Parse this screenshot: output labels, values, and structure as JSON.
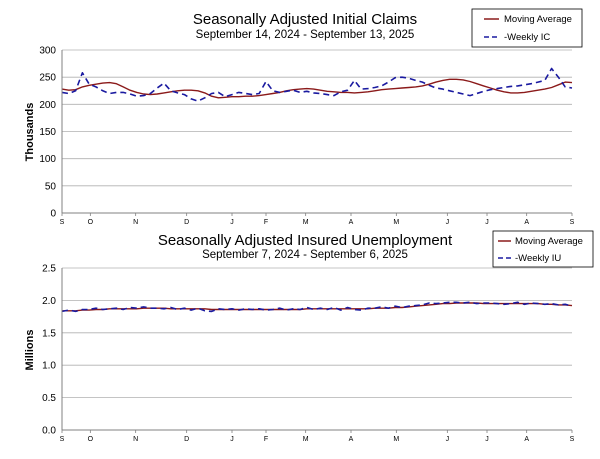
{
  "colors": {
    "moving_average": "#8b1a1a",
    "weekly": "#1a1aa0",
    "grid": "#b0b0b0",
    "axis": "#808080"
  },
  "chart_data": [
    {
      "type": "line",
      "title": "Seasonally Adjusted Initial Claims",
      "subtitle": "September 14, 2024 - September 13, 2025",
      "xlabel": "",
      "ylabel": "Thousands",
      "ylim": [
        0,
        300
      ],
      "yticks": [
        "0",
        "50",
        "100",
        "150",
        "200",
        "250",
        "300"
      ],
      "ytick_values": [
        0,
        50,
        100,
        150,
        200,
        250,
        300
      ],
      "xtick_labels": [
        "S",
        "O",
        "N",
        "D",
        "J",
        "F",
        "M",
        "A",
        "M",
        "J",
        "J",
        "A",
        "S"
      ],
      "xtick_weeks": [
        0,
        5,
        13,
        22,
        30,
        36,
        43,
        51,
        59,
        68,
        75,
        82,
        90
      ],
      "grid": true,
      "legend_position": "top-right",
      "series": [
        {
          "name": "Moving Average",
          "style": "solid",
          "values": [
            228,
            226,
            227,
            232,
            235,
            237,
            239,
            240,
            238,
            232,
            226,
            222,
            219,
            218,
            219,
            221,
            223,
            225,
            226,
            226,
            225,
            221,
            215,
            212,
            213,
            214,
            214,
            215,
            215,
            216,
            218,
            220,
            222,
            225,
            227,
            228,
            229,
            228,
            226,
            224,
            223,
            222,
            222,
            221,
            222,
            223,
            225,
            227,
            228,
            229,
            230,
            231,
            232,
            234,
            237,
            241,
            244,
            246,
            246,
            245,
            242,
            238,
            234,
            230,
            226,
            223,
            221,
            221,
            222,
            224,
            226,
            228,
            231,
            236,
            241,
            240
          ]
        },
        {
          "name": "Weekly IC",
          "style": "dashed",
          "values": [
            222,
            220,
            225,
            258,
            237,
            232,
            225,
            220,
            222,
            222,
            219,
            215,
            216,
            220,
            230,
            239,
            225,
            221,
            218,
            210,
            206,
            212,
            220,
            222,
            214,
            218,
            222,
            220,
            218,
            220,
            242,
            225,
            222,
            224,
            226,
            222,
            224,
            221,
            220,
            218,
            216,
            223,
            226,
            244,
            228,
            229,
            231,
            234,
            241,
            249,
            250,
            248,
            244,
            241,
            235,
            230,
            228,
            225,
            222,
            219,
            216,
            220,
            224,
            227,
            229,
            231,
            233,
            234,
            236,
            238,
            241,
            244,
            266,
            250,
            232,
            230
          ]
        }
      ]
    },
    {
      "type": "line",
      "title": "Seasonally Adjusted Insured Unemployment",
      "subtitle": "September 7, 2024 - September 6, 2025",
      "xlabel": "",
      "ylabel": "Millions",
      "ylim": [
        0,
        2.5
      ],
      "yticks": [
        "0.0",
        "0.5",
        "1.0",
        "1.5",
        "2.0",
        "2.5"
      ],
      "ytick_values": [
        0,
        0.5,
        1.0,
        1.5,
        2.0,
        2.5
      ],
      "xtick_labels": [
        "S",
        "O",
        "N",
        "D",
        "J",
        "F",
        "M",
        "A",
        "M",
        "J",
        "J",
        "A",
        "S"
      ],
      "xtick_weeks": [
        0,
        5,
        13,
        22,
        30,
        36,
        43,
        51,
        59,
        68,
        75,
        82,
        90
      ],
      "grid": true,
      "legend_position": "top-right",
      "series": [
        {
          "name": "Moving Average",
          "style": "solid",
          "values": [
            1.84,
            1.84,
            1.84,
            1.85,
            1.85,
            1.86,
            1.86,
            1.87,
            1.87,
            1.87,
            1.87,
            1.87,
            1.88,
            1.88,
            1.88,
            1.88,
            1.87,
            1.87,
            1.87,
            1.87,
            1.87,
            1.87,
            1.86,
            1.86,
            1.86,
            1.86,
            1.86,
            1.86,
            1.86,
            1.86,
            1.86,
            1.86,
            1.86,
            1.86,
            1.86,
            1.86,
            1.87,
            1.87,
            1.87,
            1.87,
            1.87,
            1.87,
            1.87,
            1.87,
            1.87,
            1.87,
            1.88,
            1.88,
            1.88,
            1.89,
            1.89,
            1.9,
            1.91,
            1.92,
            1.93,
            1.94,
            1.95,
            1.95,
            1.96,
            1.96,
            1.96,
            1.96,
            1.95,
            1.95,
            1.95,
            1.95,
            1.95,
            1.95,
            1.95,
            1.95,
            1.95,
            1.94,
            1.94,
            1.93,
            1.93,
            1.92
          ]
        },
        {
          "name": "Weekly IU",
          "style": "dashed",
          "values": [
            1.83,
            1.85,
            1.83,
            1.86,
            1.86,
            1.88,
            1.86,
            1.87,
            1.88,
            1.86,
            1.89,
            1.88,
            1.9,
            1.88,
            1.88,
            1.87,
            1.89,
            1.86,
            1.88,
            1.85,
            1.88,
            1.84,
            1.83,
            1.87,
            1.86,
            1.87,
            1.85,
            1.87,
            1.86,
            1.87,
            1.85,
            1.86,
            1.88,
            1.85,
            1.87,
            1.86,
            1.89,
            1.86,
            1.88,
            1.86,
            1.89,
            1.85,
            1.89,
            1.86,
            1.85,
            1.88,
            1.88,
            1.9,
            1.88,
            1.91,
            1.89,
            1.91,
            1.92,
            1.93,
            1.96,
            1.95,
            1.96,
            1.97,
            1.97,
            1.96,
            1.97,
            1.95,
            1.96,
            1.96,
            1.95,
            1.94,
            1.95,
            1.97,
            1.94,
            1.96,
            1.95,
            1.94,
            1.95,
            1.93,
            1.94,
            1.91
          ]
        }
      ]
    }
  ]
}
